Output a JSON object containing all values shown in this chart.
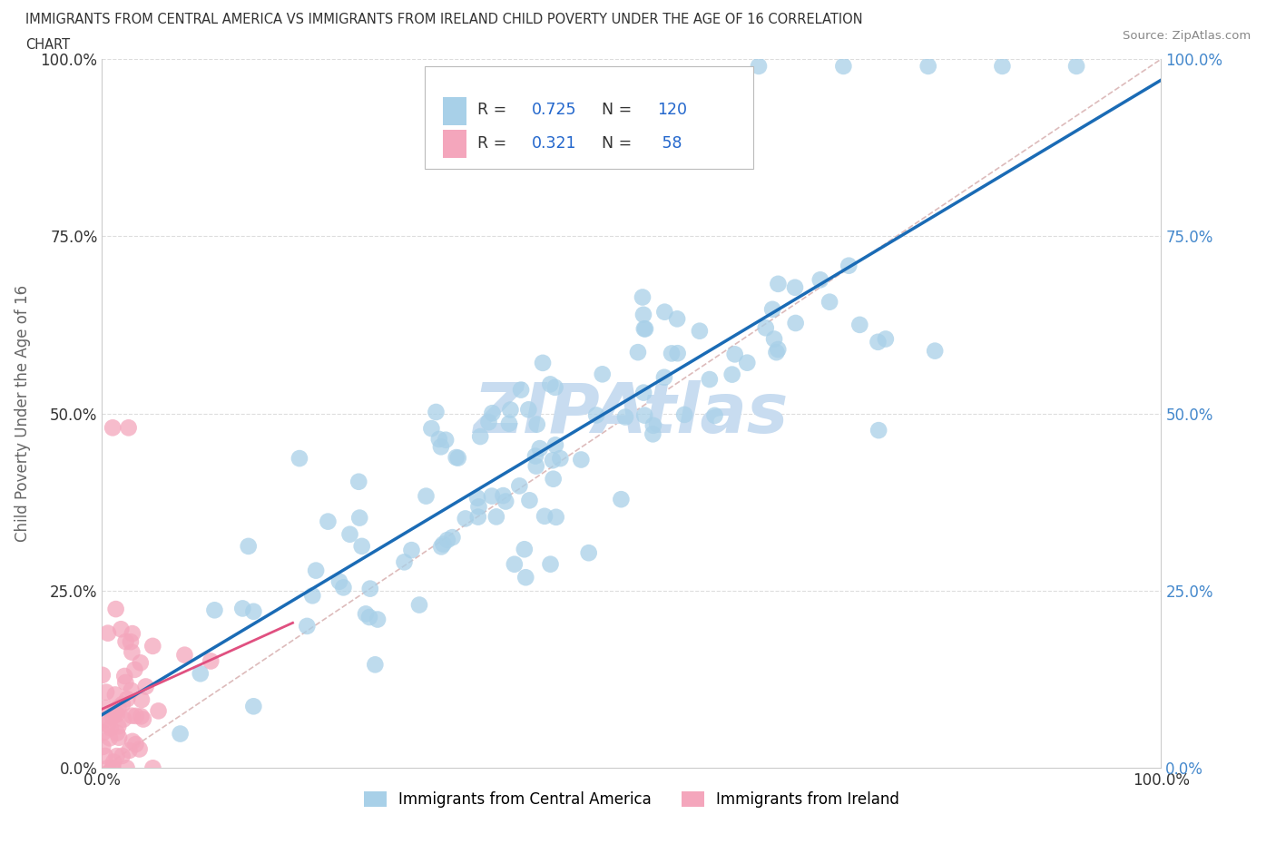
{
  "title_line1": "IMMIGRANTS FROM CENTRAL AMERICA VS IMMIGRANTS FROM IRELAND CHILD POVERTY UNDER THE AGE OF 16 CORRELATION",
  "title_line2": "CHART",
  "source": "Source: ZipAtlas.com",
  "ylabel": "Child Poverty Under the Age of 16",
  "blue_R": 0.725,
  "blue_N": 120,
  "pink_R": 0.321,
  "pink_N": 58,
  "legend_label_blue": "Immigrants from Central America",
  "legend_label_pink": "Immigrants from Ireland",
  "blue_color": "#A8D0E8",
  "pink_color": "#F4A6BC",
  "blue_line_color": "#1A6BB5",
  "pink_line_color": "#E05080",
  "ref_line_color": "#DDBBBB",
  "watermark": "ZIPAtlas",
  "watermark_color": "#C8DCF0",
  "background_color": "#FFFFFF"
}
